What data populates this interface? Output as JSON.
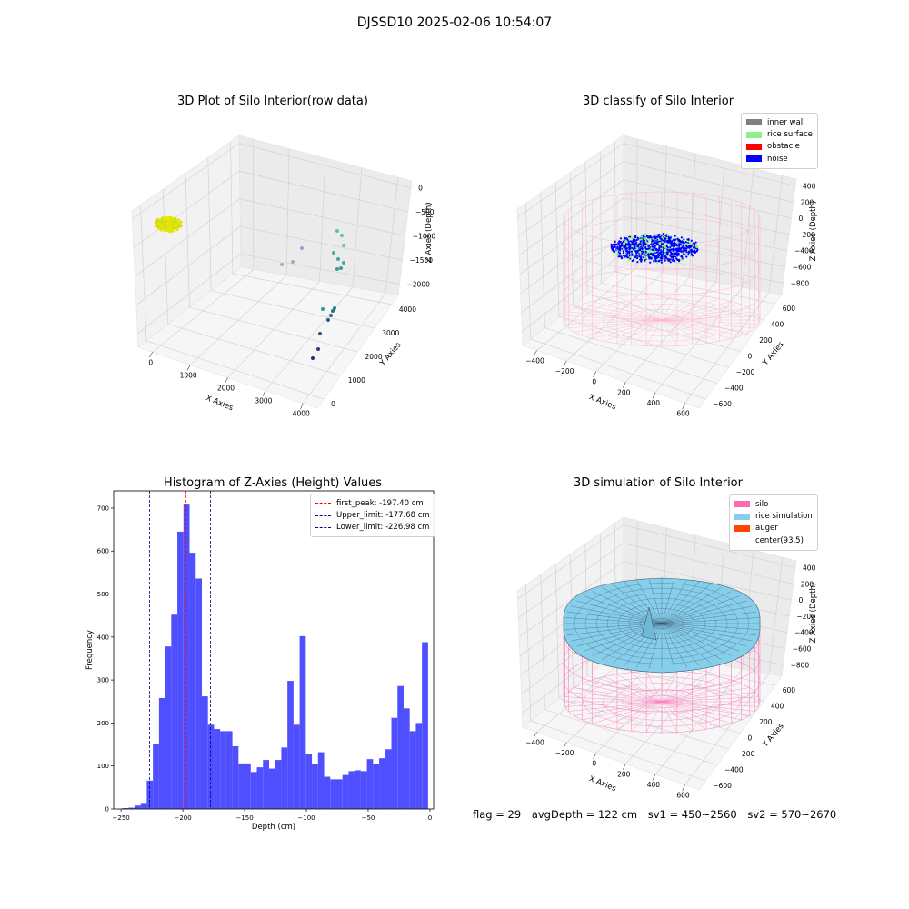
{
  "suptitle": "DJSSD10 2025-02-06 10:54:07",
  "info": {
    "flag": "flag = 29",
    "avg": "avgDepth = 122 cm",
    "sv1": "sv1 = 450~2560",
    "sv2": "sv2 = 570~2670"
  },
  "colors": {
    "hist_bar": "#4b4bff",
    "peak_line": "#ff0000",
    "limit_line": "#00008b",
    "silo_wire": "#ff6eb4",
    "rice_sim": "#87ceeb",
    "noise": "#0000ff",
    "rice_surface": "#90ee90"
  },
  "chart_data": [
    {
      "id": "raw",
      "type": "scatter",
      "title": "3D Plot of Silo Interior(row data)",
      "xlabel": "X Axies",
      "ylabel": "Y Axies",
      "zlabel": "Z Axies (Depth)",
      "x_ticks": [
        "0",
        "1000",
        "2000",
        "3000",
        "4000"
      ],
      "y_ticks": [
        "0",
        "1000",
        "2000",
        "3000",
        "4000"
      ],
      "z_ticks": [
        "0",
        "−500",
        "−1000",
        "−1500",
        "−2000"
      ]
    },
    {
      "id": "classify",
      "type": "scatter",
      "title": "3D classify of Silo Interior",
      "xlabel": "X Axies",
      "ylabel": "Y Axies",
      "zlabel": "Z Axies (Depth)",
      "x_ticks": [
        "−400",
        "−200",
        "0",
        "200",
        "400",
        "600"
      ],
      "y_ticks": [
        "−600",
        "−400",
        "−200",
        "0",
        "200",
        "400",
        "600"
      ],
      "z_ticks": [
        "400",
        "200",
        "0",
        "−200",
        "−400",
        "−600",
        "−800"
      ],
      "legend": [
        {
          "label": "inner wall",
          "color": "#808080"
        },
        {
          "label": "rice surface",
          "color": "#90ee90"
        },
        {
          "label": "obstacle",
          "color": "#ff0000"
        },
        {
          "label": "noise",
          "color": "#0000ff"
        }
      ]
    },
    {
      "id": "hist",
      "type": "bar",
      "title": "Histogram of Z-Axies (Height) Values",
      "xlabel": "Depth (cm)",
      "ylabel": "Frequency",
      "xlim": [
        -256,
        3
      ],
      "ylim": [
        0,
        740
      ],
      "x_ticks": [
        -250,
        -200,
        -150,
        -100,
        -50,
        0
      ],
      "y_ticks": [
        0,
        100,
        200,
        300,
        400,
        500,
        600,
        700
      ],
      "bin_start": -249,
      "bin_width": 4.95,
      "values": [
        2,
        3,
        8,
        14,
        66,
        152,
        258,
        378,
        452,
        645,
        708,
        596,
        536,
        262,
        196,
        186,
        181,
        181,
        146,
        106,
        106,
        86,
        97,
        114,
        94,
        114,
        143,
        298,
        196,
        402,
        127,
        104,
        132,
        75,
        69,
        69,
        79,
        88,
        90,
        88,
        116,
        105,
        118,
        139,
        212,
        286,
        234,
        181,
        200,
        388
      ],
      "vlines": [
        {
          "label": "first_peak: -197.40 cm",
          "x": -197.4,
          "color": "#ff0000"
        },
        {
          "label": "Upper_limit: -177.68 cm",
          "x": -177.68,
          "color": "#00008b"
        },
        {
          "label": "Lower_limit: -226.98 cm",
          "x": -226.98,
          "color": "#00008b"
        }
      ]
    },
    {
      "id": "sim",
      "type": "area",
      "title": "3D simulation of Silo Interior",
      "xlabel": "X Axies",
      "ylabel": "Y Axies",
      "zlabel": "Z Axies (Depth)",
      "x_ticks": [
        "−400",
        "−200",
        "0",
        "200",
        "400",
        "600"
      ],
      "y_ticks": [
        "−600",
        "−400",
        "−200",
        "0",
        "200",
        "400",
        "600"
      ],
      "z_ticks": [
        "400",
        "200",
        "0",
        "−200",
        "−400",
        "−600",
        "−800"
      ],
      "legend": [
        {
          "label": "silo",
          "color": "#ff69b4"
        },
        {
          "label": "rice simulation",
          "color": "#87ceeb"
        },
        {
          "label": "auger",
          "color": "#ff4500"
        },
        {
          "label": "center(93,5)",
          "color": ""
        }
      ]
    }
  ]
}
